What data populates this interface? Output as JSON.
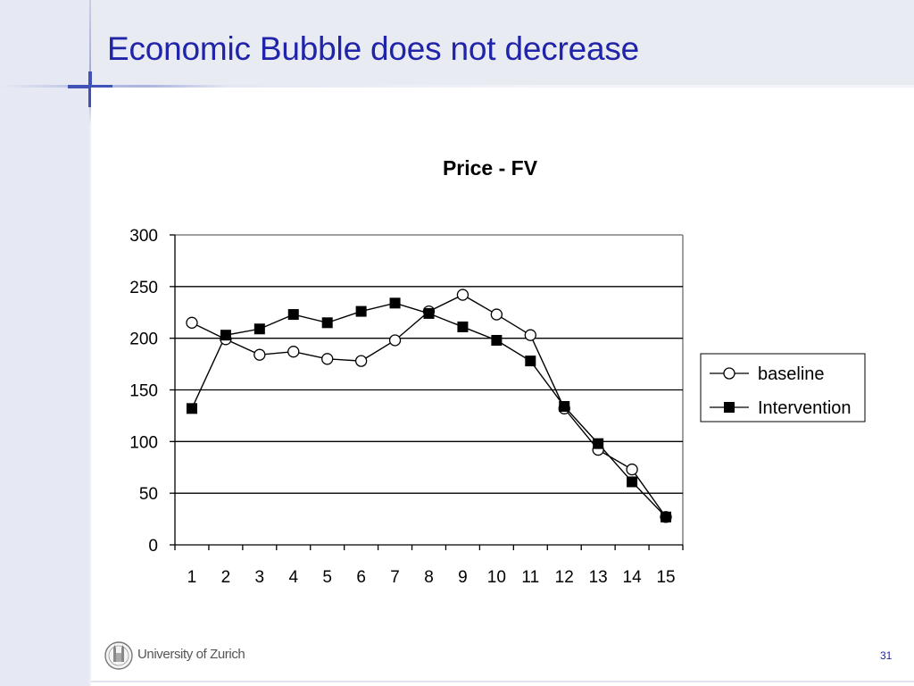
{
  "slide": {
    "title": "Economic Bubble does not decrease",
    "university": "University of Zurich",
    "page_number": "31"
  },
  "chart_data": {
    "type": "line",
    "title": "Price - FV",
    "xlabel": "",
    "ylabel": "",
    "categories": [
      "1",
      "2",
      "3",
      "4",
      "5",
      "6",
      "7",
      "8",
      "9",
      "10",
      "11",
      "12",
      "13",
      "14",
      "15"
    ],
    "ylim": [
      0,
      300
    ],
    "yticks": [
      "0",
      "50",
      "100",
      "150",
      "200",
      "250",
      "300"
    ],
    "grid": true,
    "legend_position": "right",
    "series": [
      {
        "name": "baseline",
        "marker": "open-circle",
        "color": "#000000",
        "values": [
          215,
          199,
          184,
          187,
          180,
          178,
          198,
          226,
          242,
          223,
          203,
          132,
          92,
          73,
          27
        ]
      },
      {
        "name": "Intervention",
        "marker": "filled-square",
        "color": "#000000",
        "values": [
          132,
          203,
          209,
          223,
          215,
          226,
          234,
          224,
          211,
          198,
          178,
          134,
          98,
          61,
          27
        ]
      }
    ]
  }
}
